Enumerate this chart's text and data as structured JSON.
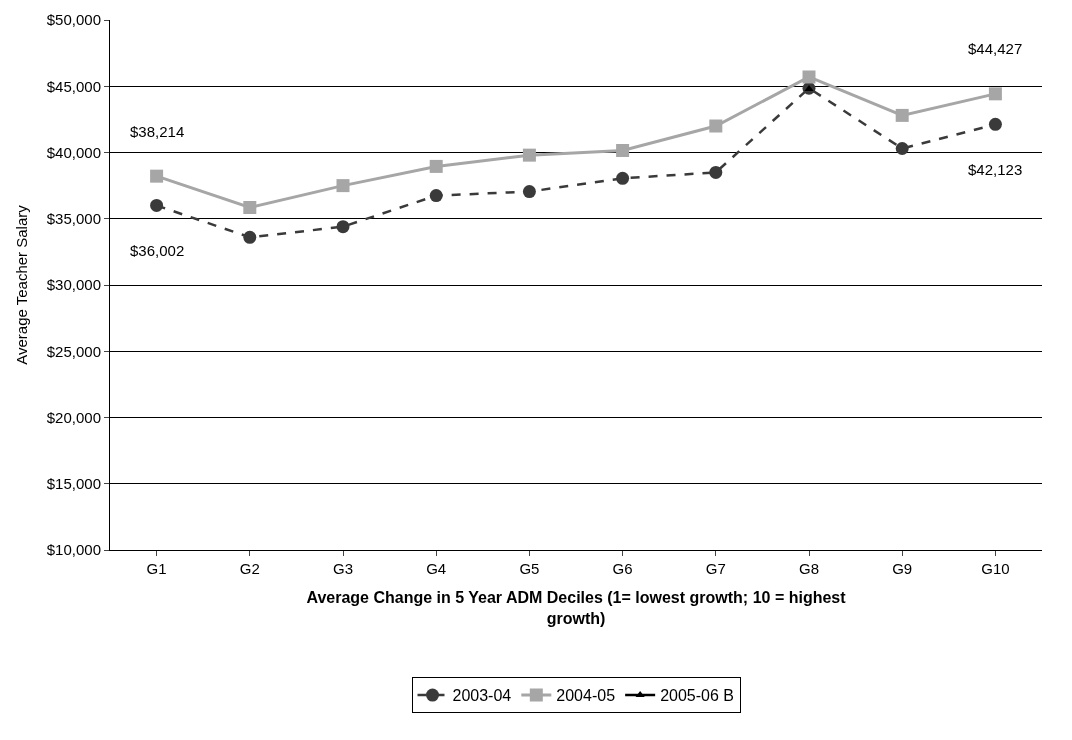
{
  "chart_data": {
    "type": "line",
    "xlabel": "Average Change in 5 Year ADM Deciles (1= lowest growth; 10 = highest growth)",
    "ylabel": "Average Teacher Salary",
    "categories": [
      "G1",
      "G2",
      "G3",
      "G4",
      "G5",
      "G6",
      "G7",
      "G8",
      "G9",
      "G10"
    ],
    "series": [
      {
        "name": "2003-04",
        "color": "#3a3a3a",
        "marker": "circle",
        "line_style": "dashed",
        "values": [
          36002,
          33600,
          34400,
          36750,
          37050,
          38050,
          38500,
          44850,
          40300,
          42123
        ],
        "value_labels": [
          "$36,002",
          null,
          null,
          null,
          null,
          null,
          null,
          null,
          null,
          "$42,123"
        ]
      },
      {
        "name": "2004-05",
        "color": "#a6a6a6",
        "marker": "square",
        "line_style": "solid",
        "values": [
          38214,
          35850,
          37500,
          38950,
          39800,
          40150,
          42000,
          45700,
          42800,
          44427
        ],
        "value_labels": [
          "$38,214",
          null,
          null,
          null,
          null,
          null,
          null,
          null,
          null,
          "$44,427"
        ]
      },
      {
        "name": "2005-06 B",
        "color": "#000000",
        "marker": "triangle",
        "line_style": "solid",
        "values": [
          null,
          null,
          null,
          null,
          null,
          null,
          null,
          44800,
          null,
          null
        ]
      }
    ],
    "ylim": [
      10000,
      50000
    ],
    "yticks": [
      {
        "value": 10000,
        "label": "$10,000"
      },
      {
        "value": 15000,
        "label": "$15,000"
      },
      {
        "value": 20000,
        "label": "$20,000"
      },
      {
        "value": 25000,
        "label": "$25,000"
      },
      {
        "value": 30000,
        "label": "$30,000"
      },
      {
        "value": 35000,
        "label": "$35,000"
      },
      {
        "value": 40000,
        "label": "$40,000"
      },
      {
        "value": 45000,
        "label": "$45,000"
      },
      {
        "value": 50000,
        "label": "$50,000"
      }
    ],
    "grid": "y",
    "legend": "bottom"
  }
}
